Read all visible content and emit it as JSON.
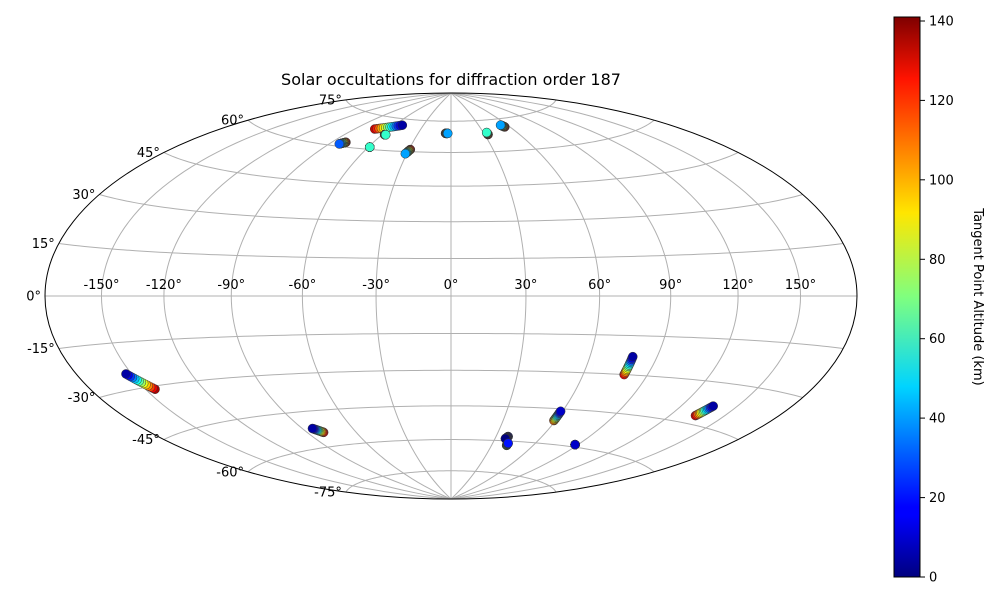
{
  "chart_data": {
    "type": "scatter",
    "projection": "hammer",
    "title": "Solar occultations for diffraction order 187",
    "grid": true,
    "lon_ticks": [
      -150,
      -120,
      -90,
      -60,
      -30,
      0,
      30,
      60,
      90,
      120,
      150
    ],
    "lon_tick_labels": [
      "-150°",
      "-120°",
      "-90°",
      "-60°",
      "-30°",
      "0°",
      "30°",
      "60°",
      "90°",
      "120°",
      "150°"
    ],
    "lat_ticks": [
      -75,
      -60,
      -45,
      -30,
      -15,
      0,
      15,
      30,
      45,
      60,
      75
    ],
    "lat_tick_labels": [
      "-75°",
      "-60°",
      "-45°",
      "-30°",
      "-15°",
      "0°",
      "15°",
      "30°",
      "45°",
      "60°",
      "75°"
    ],
    "colorbar": {
      "label": "Tangent Point Altitude (km)",
      "range": [
        0,
        141
      ],
      "ticks": [
        0,
        20,
        40,
        60,
        80,
        100,
        120,
        140
      ],
      "colormap": "jet"
    },
    "series": [
      {
        "lon": [
          -83,
          -80
        ],
        "lat": [
          61,
          62
        ],
        "alt": [
          30,
          130
        ]
      },
      {
        "lon": [
          -73,
          -52
        ],
        "lat": [
          69,
          72
        ],
        "alt": [
          130,
          5
        ]
      },
      {
        "lon": [
          -58,
          -57
        ],
        "lat": [
          67,
          67
        ],
        "alt": [
          130,
          60
        ]
      },
      {
        "lon": [
          -59,
          -59
        ],
        "lat": [
          61,
          61
        ],
        "alt": [
          60,
          135
        ]
      },
      {
        "lon": [
          -31,
          -29
        ],
        "lat": [
          59,
          61
        ],
        "alt": [
          40,
          130
        ]
      },
      {
        "lon": [
          -3,
          -5
        ],
        "lat": [
          69,
          69
        ],
        "alt": [
          40,
          135
        ]
      },
      {
        "lon": [
          33,
          33
        ],
        "lat": [
          69,
          68
        ],
        "alt": [
          60,
          140
        ]
      },
      {
        "lon": [
          53,
          55
        ],
        "lat": [
          72,
          71
        ],
        "alt": [
          40,
          140
        ]
      },
      {
        "lon": [
          -153,
          -145
        ],
        "lat": [
          -25,
          -31
        ],
        "alt": [
          5,
          135
        ]
      },
      {
        "lon": [
          -84,
          -80
        ],
        "lat": [
          -52,
          -54
        ],
        "alt": [
          5,
          130
        ]
      },
      {
        "lon": [
          37,
          38
        ],
        "lat": [
          -59,
          -58
        ],
        "alt": [
          0,
          20
        ]
      },
      {
        "lon": [
          41,
          41
        ],
        "lat": [
          -62,
          -61
        ],
        "alt": [
          90,
          20
        ]
      },
      {
        "lon": [
          59,
          59
        ],
        "lat": [
          -46,
          -50
        ],
        "alt": [
          10,
          110
        ]
      },
      {
        "lon": [
          79,
          79
        ],
        "lat": [
          -23,
          -30
        ],
        "alt": [
          5,
          125
        ]
      },
      {
        "lon": [
          88,
          88
        ],
        "lat": [
          -59,
          -59
        ],
        "alt": [
          60,
          10
        ]
      },
      {
        "lon": [
          137,
          134
        ],
        "lat": [
          -38,
          -42
        ],
        "alt": [
          5,
          130
        ]
      }
    ]
  }
}
